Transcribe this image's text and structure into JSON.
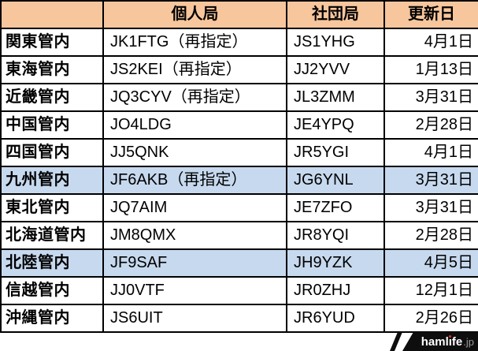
{
  "chart_data": {
    "type": "table",
    "title": "",
    "columns": [
      "",
      "個人局",
      "社団局",
      "更新日"
    ],
    "rows": [
      {
        "region": "関東管内",
        "individual": "JK1FTG（再指定）",
        "club": "JS1YHG",
        "update_date": "4月1日",
        "highlighted": false
      },
      {
        "region": "東海管内",
        "individual": "JS2KEI（再指定）",
        "club": "JJ2YVV",
        "update_date": "1月13日",
        "highlighted": false
      },
      {
        "region": "近畿管内",
        "individual": "JQ3CYV（再指定）",
        "club": "JL3ZMM",
        "update_date": "3月31日",
        "highlighted": false
      },
      {
        "region": "中国管内",
        "individual": "JO4LDG",
        "club": "JE4YPQ",
        "update_date": "2月28日",
        "highlighted": false
      },
      {
        "region": "四国管内",
        "individual": "JJ5QNK",
        "club": "JR5YGI",
        "update_date": "4月1日",
        "highlighted": false
      },
      {
        "region": "九州管内",
        "individual": "JF6AKB（再指定）",
        "club": "JG6YNL",
        "update_date": "3月31日",
        "highlighted": true
      },
      {
        "region": "東北管内",
        "individual": "JQ7AIM",
        "club": "JE7ZFO",
        "update_date": "3月31日",
        "highlighted": false
      },
      {
        "region": "北海道管内",
        "individual": "JM8QMX",
        "club": "JR8YQI",
        "update_date": "2月28日",
        "highlighted": false
      },
      {
        "region": "北陸管内",
        "individual": "JF9SAF",
        "club": "JH9YZK",
        "update_date": "4月5日",
        "highlighted": true
      },
      {
        "region": "信越管内",
        "individual": "JJ0VTF",
        "club": "JR0ZHJ",
        "update_date": "12月1日",
        "highlighted": false
      },
      {
        "region": "沖縄管内",
        "individual": "JS6UIT",
        "club": "JR6YUD",
        "update_date": "2月26日",
        "highlighted": false
      }
    ],
    "highlighted_rows": [
      5,
      8
    ],
    "legend_position": "none",
    "grid": true
  },
  "logo": {
    "text": "hamlife.jp",
    "part1": "haml",
    "i": "ı",
    "part2": "fe",
    "suffix": ".jp"
  },
  "colors": {
    "header_bg": "#F7C69C",
    "highlight_bg": "#C7D9EE",
    "border": "#000000",
    "row_bg": "#FFFFFF",
    "text": "#000000",
    "logo_bg": "#0E0E0E",
    "logo_text": "#FFFFFF",
    "logo_dot": "#E8372C",
    "logo_suffix": "#9B9B9B"
  }
}
